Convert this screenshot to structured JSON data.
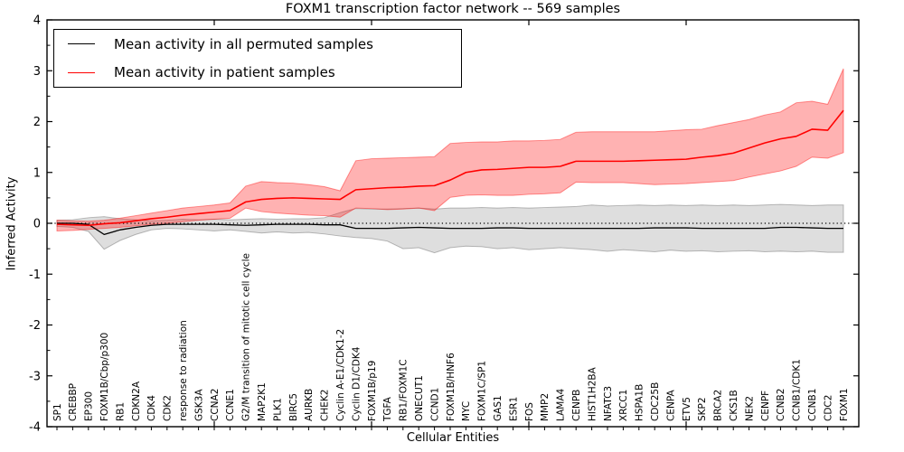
{
  "figure": {
    "title": "FOXM1 transcription factor network -- 569 samples",
    "xlabel": "Cellular Entities",
    "ylabel": "Inferred Activity"
  },
  "legend": {
    "position": "upper left",
    "items": [
      {
        "label": "Mean activity in all permuted samples",
        "color": "#000000"
      },
      {
        "label": "Mean activity in patient samples",
        "color": "#ff0000"
      }
    ]
  },
  "chart_data": {
    "type": "line",
    "title": "FOXM1 transcription factor network -- 569 samples",
    "xlabel": "Cellular Entities",
    "ylabel": "Inferred Activity",
    "ylim": [
      -4,
      4
    ],
    "yticks": [
      -4,
      -3,
      -2,
      -1,
      0,
      1,
      2,
      3,
      4
    ],
    "grid": false,
    "zero_line": "dotted-black-at-0",
    "legend_position": "upper left",
    "categories": [
      "SP1",
      "CREBBP",
      "EP300",
      "FOXM1B/Cbp/p300",
      "RB1",
      "CDKN2A",
      "CDK4",
      "CDK2",
      "response to radiation",
      "GSK3A",
      "CCNA2",
      "CCNE1",
      "G2/M transition of mitotic cell cycle",
      "MAP2K1",
      "PLK1",
      "BIRC5",
      "AURKB",
      "CHEK2",
      "Cyclin A-E1/CDK1-2",
      "Cyclin D1/CDK4",
      "FOXM1B/p19",
      "TGFA",
      "RB1/FOXM1C",
      "ONECUT1",
      "CCND1",
      "FOXM1B/HNF6",
      "MYC",
      "FOXM1C/SP1",
      "GAS1",
      "ESR1",
      "FOS",
      "MMP2",
      "LAMA4",
      "CENPB",
      "HIST1H2BA",
      "NFATC3",
      "XRCC1",
      "HSPA1B",
      "CDC25B",
      "CENPA",
      "ETV5",
      "SKP2",
      "BRCA2",
      "CKS1B",
      "NEK2",
      "CENPF",
      "CCNB2",
      "CCNB1/CDK1",
      "CCNB1",
      "CDC2",
      "FOXM1"
    ],
    "series": [
      {
        "name": "Mean activity in all permuted samples",
        "color": "#000000",
        "linewidth": 1.3,
        "values": [
          0.0,
          0.0,
          -0.02,
          -0.22,
          -0.13,
          -0.08,
          -0.04,
          -0.02,
          -0.02,
          -0.02,
          -0.02,
          -0.03,
          -0.04,
          -0.03,
          -0.02,
          -0.02,
          -0.02,
          -0.03,
          -0.03,
          -0.1,
          -0.1,
          -0.1,
          -0.09,
          -0.08,
          -0.09,
          -0.1,
          -0.1,
          -0.1,
          -0.09,
          -0.09,
          -0.1,
          -0.1,
          -0.1,
          -0.1,
          -0.1,
          -0.1,
          -0.1,
          -0.1,
          -0.09,
          -0.09,
          -0.09,
          -0.1,
          -0.1,
          -0.1,
          -0.1,
          -0.1,
          -0.08,
          -0.08,
          -0.09,
          -0.1,
          -0.1
        ]
      },
      {
        "name": "Mean activity in patient samples",
        "color": "#ff0000",
        "linewidth": 1.6,
        "values": [
          -0.02,
          -0.03,
          -0.04,
          -0.01,
          0.01,
          0.05,
          0.09,
          0.12,
          0.16,
          0.19,
          0.22,
          0.25,
          0.42,
          0.47,
          0.49,
          0.5,
          0.49,
          0.48,
          0.47,
          0.66,
          0.68,
          0.7,
          0.71,
          0.73,
          0.74,
          0.85,
          1.0,
          1.05,
          1.06,
          1.08,
          1.1,
          1.1,
          1.12,
          1.22,
          1.22,
          1.22,
          1.22,
          1.23,
          1.24,
          1.25,
          1.26,
          1.3,
          1.33,
          1.38,
          1.48,
          1.58,
          1.66,
          1.71,
          1.85,
          1.83,
          2.22
        ]
      }
    ],
    "bands": [
      {
        "name": "permuted-samples-band",
        "color": "#000000",
        "alpha": 0.13,
        "upper": [
          0.06,
          0.07,
          0.11,
          0.13,
          0.09,
          0.07,
          0.05,
          0.06,
          0.08,
          0.07,
          0.08,
          0.07,
          0.08,
          0.09,
          0.08,
          0.09,
          0.09,
          0.11,
          0.21,
          0.29,
          0.28,
          0.28,
          0.29,
          0.3,
          0.28,
          0.3,
          0.3,
          0.31,
          0.3,
          0.31,
          0.3,
          0.31,
          0.32,
          0.33,
          0.36,
          0.34,
          0.35,
          0.36,
          0.35,
          0.36,
          0.35,
          0.36,
          0.35,
          0.36,
          0.35,
          0.36,
          0.37,
          0.36,
          0.35,
          0.36,
          0.36
        ],
        "lower": [
          -0.06,
          -0.08,
          -0.16,
          -0.51,
          -0.34,
          -0.22,
          -0.13,
          -0.1,
          -0.11,
          -0.13,
          -0.15,
          -0.13,
          -0.16,
          -0.19,
          -0.17,
          -0.19,
          -0.18,
          -0.21,
          -0.25,
          -0.28,
          -0.3,
          -0.35,
          -0.5,
          -0.48,
          -0.58,
          -0.48,
          -0.45,
          -0.46,
          -0.5,
          -0.48,
          -0.52,
          -0.5,
          -0.48,
          -0.5,
          -0.52,
          -0.55,
          -0.52,
          -0.54,
          -0.56,
          -0.53,
          -0.55,
          -0.54,
          -0.56,
          -0.55,
          -0.54,
          -0.56,
          -0.55,
          -0.56,
          -0.55,
          -0.57,
          -0.57
        ]
      },
      {
        "name": "patient-samples-band",
        "color": "#ff0000",
        "alpha": 0.3,
        "upper": [
          0.06,
          0.05,
          0.04,
          0.06,
          0.1,
          0.15,
          0.2,
          0.25,
          0.3,
          0.33,
          0.36,
          0.4,
          0.73,
          0.82,
          0.8,
          0.79,
          0.76,
          0.72,
          0.64,
          1.23,
          1.27,
          1.28,
          1.29,
          1.3,
          1.31,
          1.57,
          1.59,
          1.6,
          1.6,
          1.62,
          1.62,
          1.63,
          1.65,
          1.79,
          1.8,
          1.8,
          1.8,
          1.8,
          1.8,
          1.82,
          1.84,
          1.85,
          1.92,
          1.98,
          2.04,
          2.13,
          2.19,
          2.37,
          2.4,
          2.34,
          3.04
        ],
        "lower": [
          -0.15,
          -0.14,
          -0.12,
          -0.1,
          -0.08,
          -0.05,
          -0.02,
          0.0,
          0.03,
          0.06,
          0.08,
          0.1,
          0.3,
          0.23,
          0.2,
          0.18,
          0.16,
          0.15,
          0.12,
          0.3,
          0.29,
          0.27,
          0.28,
          0.3,
          0.25,
          0.51,
          0.55,
          0.56,
          0.55,
          0.55,
          0.57,
          0.58,
          0.6,
          0.81,
          0.8,
          0.8,
          0.8,
          0.78,
          0.76,
          0.77,
          0.78,
          0.8,
          0.82,
          0.84,
          0.91,
          0.97,
          1.03,
          1.12,
          1.3,
          1.28,
          1.39
        ]
      }
    ]
  }
}
